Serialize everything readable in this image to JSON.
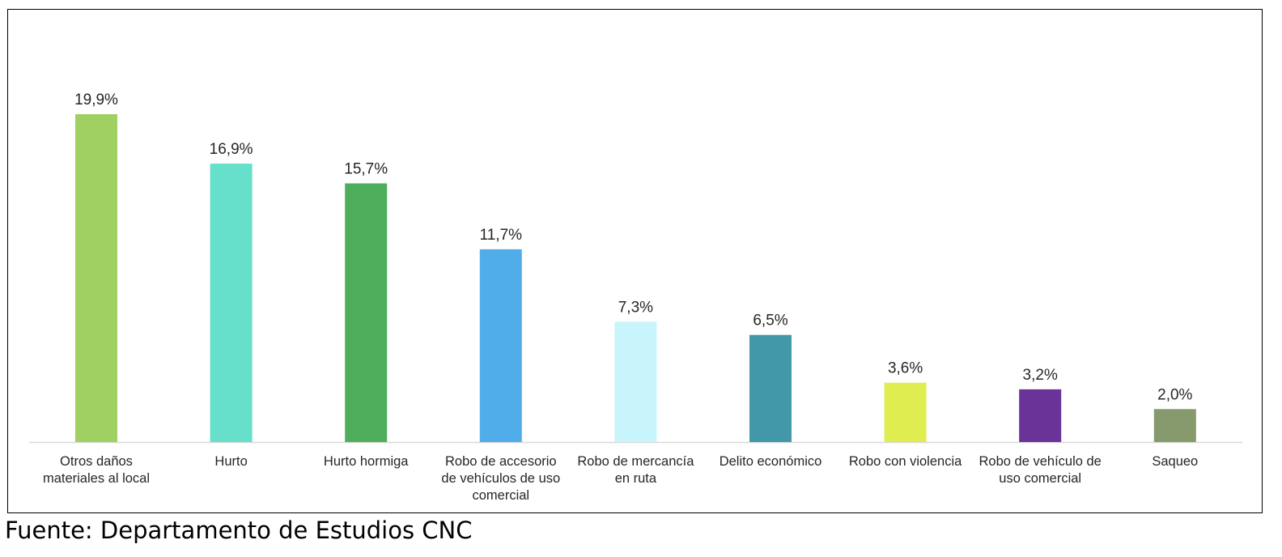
{
  "chart_data": {
    "type": "bar",
    "categories": [
      "Otros daños materiales al local",
      "Hurto",
      "Hurto hormiga",
      "Robo de accesorio de vehículos de uso comercial",
      "Robo de mercancía en ruta",
      "Delito económico",
      "Robo con violencia",
      "Robo de vehículo de uso comercial",
      "Saqueo"
    ],
    "category_label_lines": [
      [
        "Otros daños",
        "materiales al local"
      ],
      [
        "Hurto"
      ],
      [
        "Hurto hormiga"
      ],
      [
        "Robo de accesorio",
        "de vehículos de uso",
        "comercial"
      ],
      [
        "Robo de mercancía",
        "en ruta"
      ],
      [
        "Delito económico"
      ],
      [
        "Robo con violencia"
      ],
      [
        "Robo de vehículo de",
        "uso comercial"
      ],
      [
        "Saqueo"
      ]
    ],
    "values": [
      19.9,
      16.9,
      15.7,
      11.7,
      7.3,
      6.5,
      3.6,
      3.2,
      2.0
    ],
    "data_labels": [
      "19,9%",
      "16,9%",
      "15,7%",
      "11,7%",
      "7,3%",
      "6,5%",
      "3,6%",
      "3,2%",
      "2,0%"
    ],
    "colors": [
      "#A0D062",
      "#66DFCB",
      "#4FAE5C",
      "#50ADEA",
      "#C8F4FB",
      "#4297A8",
      "#DFED50",
      "#6A3398",
      "#869A6E"
    ],
    "ylim": [
      0,
      21
    ],
    "grid": false,
    "legend": "none"
  },
  "source": "Fuente: Departamento de Estudios CNC"
}
